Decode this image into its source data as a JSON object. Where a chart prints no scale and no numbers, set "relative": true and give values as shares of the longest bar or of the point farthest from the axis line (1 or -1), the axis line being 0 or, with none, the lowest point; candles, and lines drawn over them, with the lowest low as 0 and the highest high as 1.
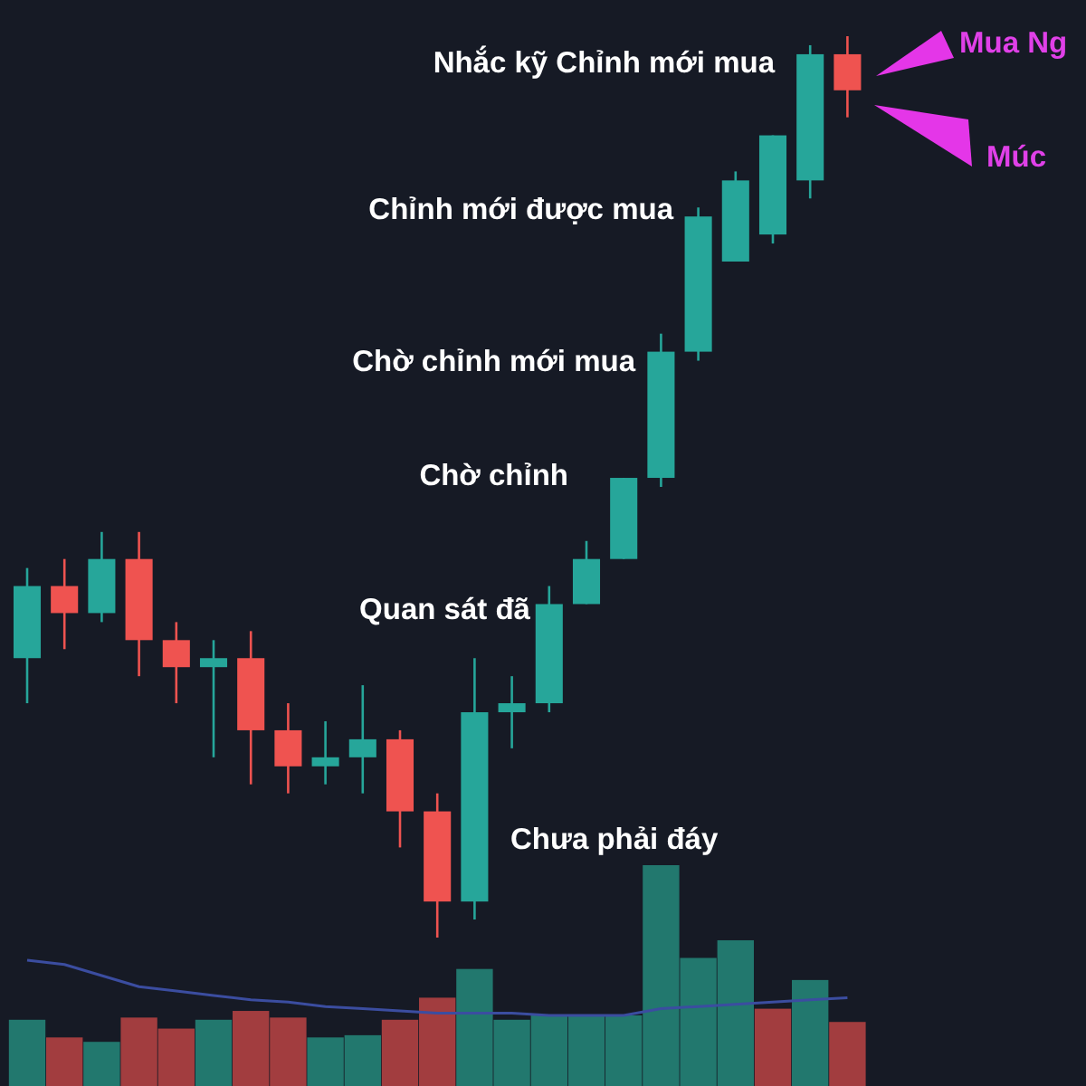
{
  "chart_data": [
    {
      "type": "candlestick",
      "relative": true,
      "categories": [
        null,
        null,
        null,
        null,
        null,
        null,
        null,
        null,
        null,
        null,
        null,
        null,
        null,
        null,
        null,
        null,
        null,
        null,
        null,
        null,
        null,
        null,
        null
      ],
      "ohlc": [
        [
          0.31,
          0.41,
          0.26,
          0.39
        ],
        [
          0.39,
          0.42,
          0.32,
          0.36
        ],
        [
          0.36,
          0.45,
          0.35,
          0.42
        ],
        [
          0.42,
          0.45,
          0.29,
          0.33
        ],
        [
          0.33,
          0.35,
          0.26,
          0.3
        ],
        [
          0.3,
          0.33,
          0.2,
          0.31
        ],
        [
          0.31,
          0.34,
          0.17,
          0.23
        ],
        [
          0.23,
          0.26,
          0.16,
          0.19
        ],
        [
          0.19,
          0.24,
          0.17,
          0.2
        ],
        [
          0.2,
          0.28,
          0.16,
          0.22
        ],
        [
          0.22,
          0.23,
          0.1,
          0.14
        ],
        [
          0.14,
          0.16,
          0,
          0.04
        ],
        [
          0.04,
          0.31,
          0.02,
          0.25
        ],
        [
          0.25,
          0.29,
          0.21,
          0.26
        ],
        [
          0.26,
          0.39,
          0.25,
          0.37
        ],
        [
          0.37,
          0.44,
          0.37,
          0.42
        ],
        [
          0.42,
          0.51,
          0.42,
          0.51
        ],
        [
          0.51,
          0.67,
          0.5,
          0.65
        ],
        [
          0.65,
          0.81,
          0.64,
          0.8
        ],
        [
          0.75,
          0.85,
          0.75,
          0.84
        ],
        [
          0.78,
          0.89,
          0.77,
          0.89
        ],
        [
          0.84,
          0.99,
          0.82,
          0.98
        ],
        [
          0.98,
          1,
          0.91,
          0.94
        ]
      ],
      "colors": [
        "#26a69a",
        "#ef5350",
        "#26a69a",
        "#ef5350",
        "#ef5350",
        "#26a69a",
        "#ef5350",
        "#ef5350",
        "#26a69a",
        "#26a69a",
        "#ef5350",
        "#ef5350",
        "#26a69a",
        "#26a69a",
        "#26a69a",
        "#26a69a",
        "#26a69a",
        "#26a69a",
        "#26a69a",
        "#26a69a",
        "#26a69a",
        "#26a69a",
        "#ef5350"
      ],
      "annotations": [
        "Nhắc kỹ Chỉnh mới mua",
        "Chỉnh mới được mua",
        "Chờ chỉnh mới mua",
        "Chờ chỉnh",
        "Quan sát đã",
        "Chưa phải đáy",
        "Mua Ng",
        "Múc"
      ]
    },
    {
      "type": "bar",
      "relative": true,
      "categories": [
        null,
        null,
        null,
        null,
        null,
        null,
        null,
        null,
        null,
        null,
        null,
        null,
        null,
        null,
        null,
        null,
        null,
        null,
        null,
        null,
        null,
        null,
        null
      ],
      "series": [
        {
          "type": "bar",
          "values": [
            0.3,
            0.22,
            0.2,
            0.31,
            0.26,
            0.3,
            0.34,
            0.31,
            0.22,
            0.23,
            0.3,
            0.4,
            0.53,
            0.3,
            0.32,
            0.32,
            0.32,
            1,
            0.58,
            0.66,
            0.35,
            0.48,
            0.29
          ],
          "colors": [
            "#22786e",
            "#a23d3f",
            "#22786e",
            "#a23d3f",
            "#a23d3f",
            "#22786e",
            "#a23d3f",
            "#a23d3f",
            "#22786e",
            "#22786e",
            "#a23d3f",
            "#a23d3f",
            "#22786e",
            "#22786e",
            "#22786e",
            "#22786e",
            "#22786e",
            "#22786e",
            "#22786e",
            "#22786e",
            "#a23d3f",
            "#22786e",
            "#a23d3f"
          ]
        },
        {
          "type": "line",
          "color": "#3b4da0",
          "values": [
            0.57,
            0.55,
            0.5,
            0.45,
            0.43,
            0.41,
            0.39,
            0.38,
            0.36,
            0.35,
            0.34,
            0.33,
            0.33,
            0.33,
            0.32,
            0.32,
            0.32,
            0.35,
            0.36,
            0.37,
            0.38,
            0.39,
            0.4
          ]
        }
      ]
    }
  ]
}
